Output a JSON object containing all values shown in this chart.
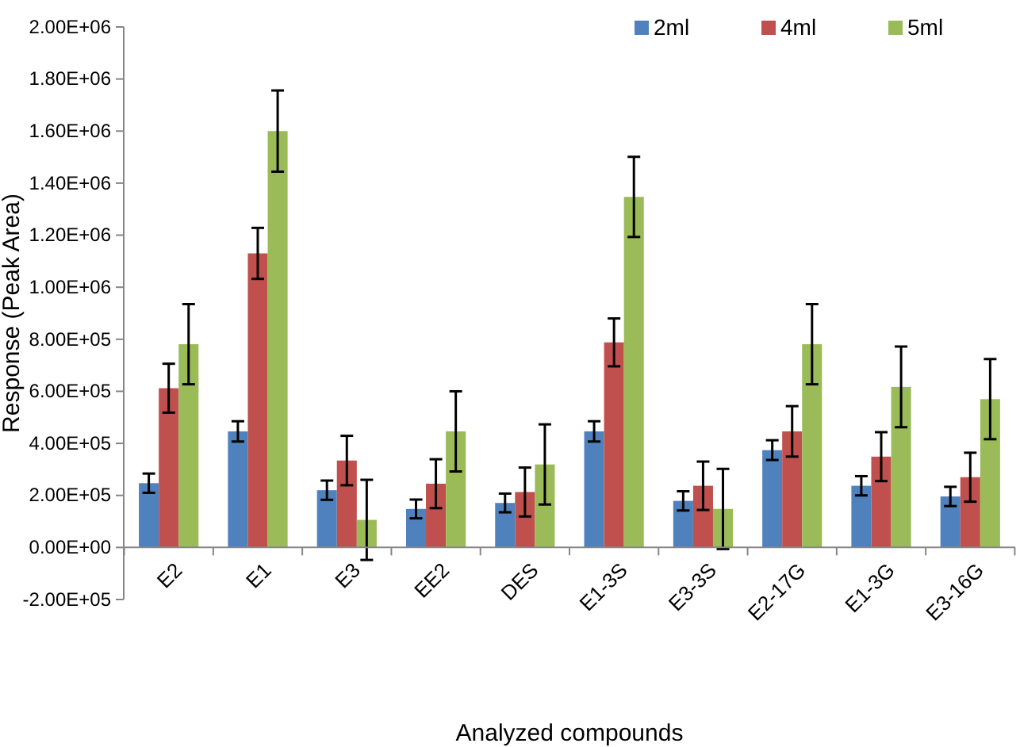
{
  "chart_data": {
    "type": "bar",
    "xlabel": "Analyzed compounds",
    "ylabel": "Response (Peak Area)",
    "categories": [
      "E2",
      "E1",
      "E3",
      "EE2",
      "DES",
      "E1-3S",
      "E3-3S",
      "E2-17G",
      "E1-3G",
      "E3-16G"
    ],
    "series": [
      {
        "name": "2ml",
        "color": "#4f81bd",
        "values": [
          247000,
          446000,
          220000,
          148000,
          171000,
          446000,
          179000,
          374000,
          237000,
          196000
        ],
        "errors": [
          37000,
          39000,
          37000,
          36000,
          36000,
          39000,
          37000,
          38000,
          37000,
          37000
        ]
      },
      {
        "name": "4ml",
        "color": "#c0504d",
        "values": [
          612000,
          1130000,
          334000,
          245000,
          213000,
          788000,
          237000,
          446000,
          349000,
          270000
        ],
        "errors": [
          94000,
          98000,
          95000,
          94000,
          94000,
          92000,
          93000,
          97000,
          94000,
          94000
        ]
      },
      {
        "name": "5ml",
        "color": "#9bbb59",
        "values": [
          781000,
          1600000,
          106000,
          446000,
          319000,
          1347000,
          148000,
          781000,
          617000,
          570000
        ],
        "errors": [
          154000,
          156000,
          154000,
          154000,
          154000,
          154000,
          154000,
          154000,
          155000,
          154000
        ]
      }
    ],
    "ylim": [
      -200000,
      2000000
    ],
    "yticks": [
      {
        "value": -200000,
        "label": "-2.00E+05"
      },
      {
        "value": 0,
        "label": "0.00E+00"
      },
      {
        "value": 200000,
        "label": "2.00E+05"
      },
      {
        "value": 400000,
        "label": "4.00E+05"
      },
      {
        "value": 600000,
        "label": "6.00E+05"
      },
      {
        "value": 800000,
        "label": "8.00E+05"
      },
      {
        "value": 1000000,
        "label": "1.00E+06"
      },
      {
        "value": 1200000,
        "label": "1.20E+06"
      },
      {
        "value": 1400000,
        "label": "1.40E+06"
      },
      {
        "value": 1600000,
        "label": "1.60E+06"
      },
      {
        "value": 1800000,
        "label": "1.80E+06"
      },
      {
        "value": 2000000,
        "label": "2.00E+06"
      }
    ],
    "grid": false,
    "legend": "top right"
  }
}
